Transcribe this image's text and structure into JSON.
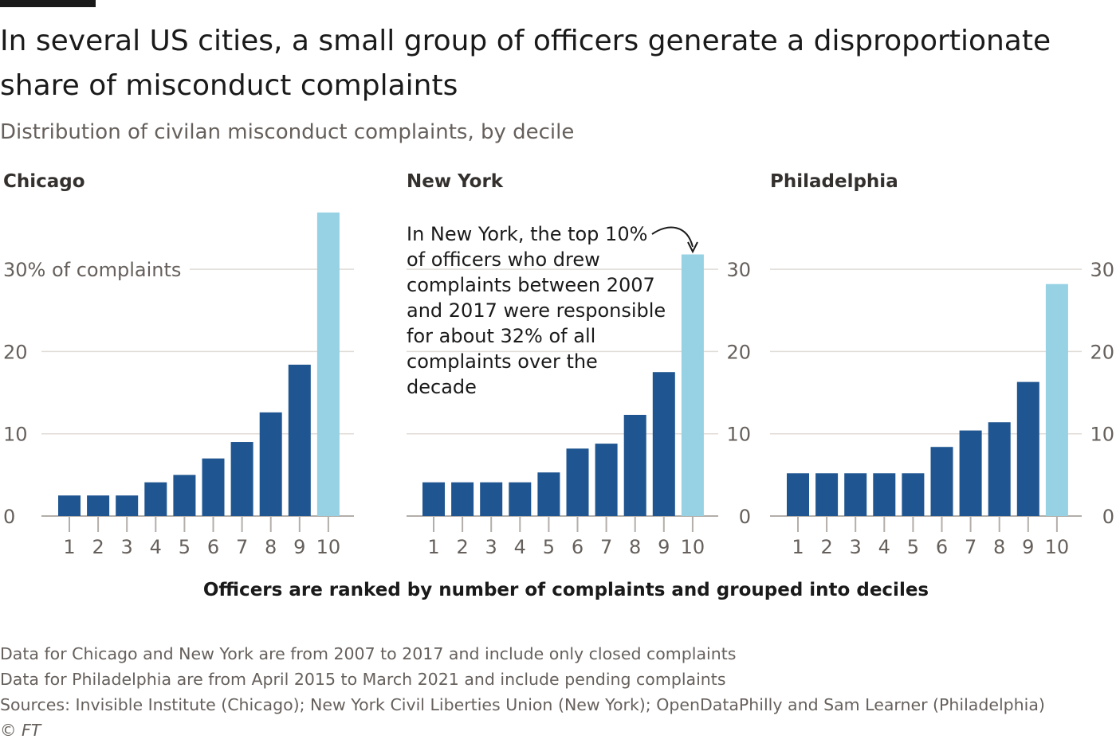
{
  "header": {
    "title": "In several US cities, a small group of officers generate a disproportionate share of misconduct complaints",
    "subtitle": "Distribution of civilan misconduct complaints, by decile"
  },
  "annotation": "In New York, the top 10% of officers who drew complaints between 2007 and 2017 were responsible for about 32% of all complaints over the decade",
  "x_axis_title": "Officers are ranked by number of complaints and grouped into deciles",
  "footnotes": {
    "note1": "Data for Chicago and New York are from 2007 to 2017 and include only closed complaints",
    "note2": "Data for Philadelphia are from April 2015 to March 2021 and include pending complaints",
    "sources": "Sources: Invisible Institute (Chicago); New York Civil Liberties Union (New York); OpenDataPhilly and Sam Learner (Philadelphia)",
    "copyright": "© FT"
  },
  "colors": {
    "bar": "#1f5590",
    "highlight": "#96d1e4"
  },
  "chart_data": [
    {
      "type": "bar",
      "title": "Chicago",
      "categories": [
        "1",
        "2",
        "3",
        "4",
        "5",
        "6",
        "7",
        "8",
        "9",
        "10"
      ],
      "values": [
        2.5,
        2.5,
        2.5,
        4.1,
        5.0,
        7.0,
        9.0,
        12.6,
        18.4,
        36.9
      ],
      "ylim": [
        0,
        37
      ],
      "yticks": [
        0,
        10,
        20,
        30
      ],
      "ytick_labels": [
        "0",
        "10",
        "20",
        "30% of complaints"
      ],
      "ytick_side": "left",
      "highlight_index": 9
    },
    {
      "type": "bar",
      "title": "New York",
      "categories": [
        "1",
        "2",
        "3",
        "4",
        "5",
        "6",
        "7",
        "8",
        "9",
        "10"
      ],
      "values": [
        4.1,
        4.1,
        4.1,
        4.1,
        5.3,
        8.2,
        8.8,
        12.3,
        17.5,
        31.8
      ],
      "ylim": [
        0,
        37
      ],
      "yticks": [
        0,
        10,
        20,
        30
      ],
      "ytick_labels": [
        "0",
        "10",
        "20",
        "30"
      ],
      "ytick_side": "right",
      "highlight_index": 9
    },
    {
      "type": "bar",
      "title": "Philadelphia",
      "categories": [
        "1",
        "2",
        "3",
        "4",
        "5",
        "6",
        "7",
        "8",
        "9",
        "10"
      ],
      "values": [
        5.2,
        5.2,
        5.2,
        5.2,
        5.2,
        8.4,
        10.4,
        11.4,
        16.3,
        28.2
      ],
      "ylim": [
        0,
        37
      ],
      "yticks": [
        0,
        10,
        20,
        30
      ],
      "ytick_labels": [
        "0",
        "10",
        "20",
        "30"
      ],
      "ytick_side": "right",
      "highlight_index": 9
    }
  ]
}
